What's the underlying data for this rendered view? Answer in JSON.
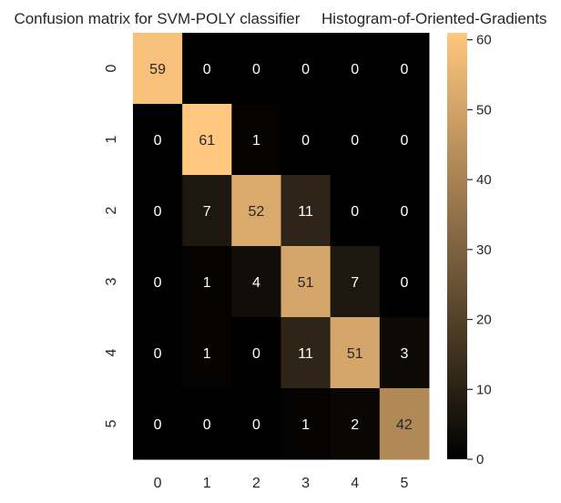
{
  "chart_data": {
    "type": "heatmap",
    "title": "Confusion matrix for SVM-POLY classifier     Histogram-of-Oriented-Gradients",
    "xlabel": "",
    "ylabel": "",
    "x_categories": [
      "0",
      "1",
      "2",
      "3",
      "4",
      "5"
    ],
    "y_categories": [
      "0",
      "1",
      "2",
      "3",
      "4",
      "5"
    ],
    "values": [
      [
        59,
        0,
        0,
        0,
        0,
        0
      ],
      [
        0,
        61,
        1,
        0,
        0,
        0
      ],
      [
        0,
        7,
        52,
        11,
        0,
        0
      ],
      [
        0,
        1,
        4,
        51,
        7,
        0
      ],
      [
        0,
        1,
        0,
        11,
        51,
        3
      ],
      [
        0,
        0,
        0,
        1,
        2,
        42
      ]
    ],
    "colorbar": {
      "min": 0,
      "max": 61,
      "ticks": [
        0,
        10,
        20,
        30,
        40,
        50,
        60
      ],
      "colormap": "copper",
      "low_color": "#000000",
      "high_color": "#ffc77f"
    },
    "annotated": true,
    "grid": false,
    "legend": "colorbar-right"
  }
}
